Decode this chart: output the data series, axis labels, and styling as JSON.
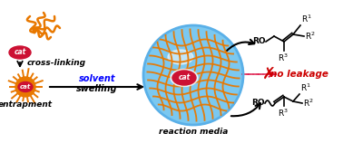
{
  "bg_color": "#ffffff",
  "orange_color": "#E87800",
  "blue_light": "#7BC8F0",
  "blue_med": "#5AB0E8",
  "red_color": "#CC0000",
  "pink_red": "#DD1144",
  "cat_color": "#CC1133",
  "figsize": [
    3.78,
    1.58
  ],
  "dpi": 100,
  "labels": {
    "cross_linking": "cross-linking",
    "solvent": "solvent",
    "swelling": "swelling",
    "entrapment": "entrapment",
    "reaction_media": "reaction media",
    "no_leakage": "no leakage",
    "cat": "cat"
  }
}
